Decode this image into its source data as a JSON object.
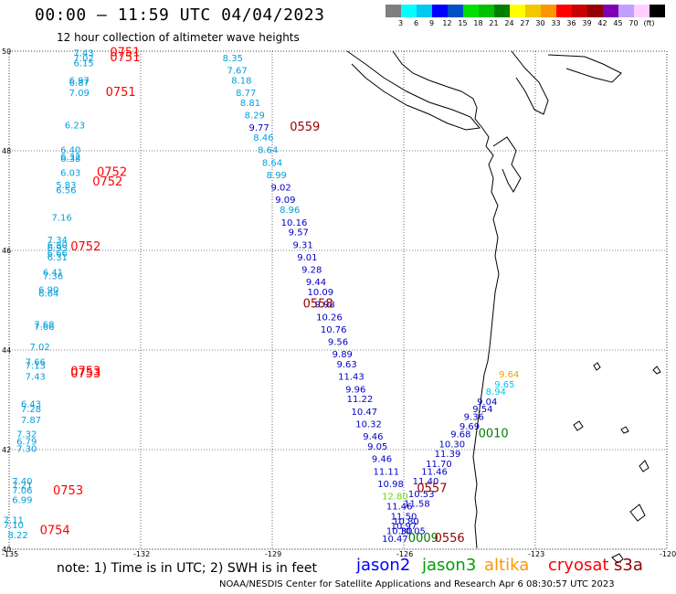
{
  "header": {
    "title": "00:00 – 11:59 UTC 04/04/2023",
    "subtitle": "12 hour collection of altimeter wave heights"
  },
  "colorbar": {
    "swatches": [
      "#7f7f7f",
      "#00ffff",
      "#00c8f0",
      "#0000ff",
      "#0050c8",
      "#00e000",
      "#00c000",
      "#008000",
      "#ffff00",
      "#f0c800",
      "#ff9600",
      "#ff0000",
      "#c80000",
      "#960000",
      "#7f00b4",
      "#c0a0ff",
      "#ffd0ff",
      "#000000"
    ],
    "labels": [
      "3",
      "6",
      "9",
      "12",
      "15",
      "18",
      "21",
      "24",
      "27",
      "30",
      "33",
      "36",
      "39",
      "42",
      "45",
      "70",
      "(ft)"
    ]
  },
  "axes": {
    "lon_ticks": [
      "-135",
      "-132",
      "-129",
      "-126",
      "-123",
      "-120"
    ],
    "lat_ticks": [
      "50",
      "48",
      "46",
      "44",
      "42",
      "40"
    ],
    "lon_range": [
      -135,
      -120
    ],
    "lat_range": [
      40,
      50
    ]
  },
  "footer": {
    "note": "note:  1) Time is in UTC;  2) SWH is in feet",
    "credit": "NOAA/NESDIS Center for Satellite Applications and Research    Apr  6 08:30:57 UTC 2023"
  },
  "legend": [
    {
      "name": "jason2",
      "color": "#0000ff"
    },
    {
      "name": "jason3",
      "color": "#00a000"
    },
    {
      "name": "altika",
      "color": "#ff9600"
    },
    {
      "name": "cryosat",
      "color": "#ff0000"
    },
    {
      "name": "s3a",
      "color": "#960000"
    }
  ],
  "track_labels": [
    {
      "text": "0751",
      "lon": -132.7,
      "lat": 49.9,
      "color": "#ff0000"
    },
    {
      "text": "0751",
      "lon": -132.7,
      "lat": 49.8,
      "color": "#ff0000"
    },
    {
      "text": "0751",
      "lon": -132.8,
      "lat": 49.1,
      "color": "#ff0000"
    },
    {
      "text": "0559",
      "lon": -128.6,
      "lat": 48.4,
      "color": "#960000"
    },
    {
      "text": "0752",
      "lon": -133.0,
      "lat": 47.5,
      "color": "#ff0000"
    },
    {
      "text": "0752",
      "lon": -133.1,
      "lat": 47.3,
      "color": "#ff0000"
    },
    {
      "text": "0752",
      "lon": -133.6,
      "lat": 46.0,
      "color": "#ff0000"
    },
    {
      "text": "0558",
      "lon": -128.3,
      "lat": 44.85,
      "color": "#960000"
    },
    {
      "text": "0753",
      "lon": -133.6,
      "lat": 43.5,
      "color": "#ff0000"
    },
    {
      "text": "0753",
      "lon": -133.6,
      "lat": 43.45,
      "color": "#ff0000"
    },
    {
      "text": "0010",
      "lon": -124.3,
      "lat": 42.25,
      "color": "#008000"
    },
    {
      "text": "0753",
      "lon": -134.0,
      "lat": 41.1,
      "color": "#ff0000"
    },
    {
      "text": "0557",
      "lon": -125.7,
      "lat": 41.15,
      "color": "#960000"
    },
    {
      "text": "0754",
      "lon": -134.3,
      "lat": 40.3,
      "color": "#ff0000"
    },
    {
      "text": "0009",
      "lon": -125.9,
      "lat": 40.15,
      "color": "#008000"
    },
    {
      "text": "0556",
      "lon": -125.3,
      "lat": 40.15,
      "color": "#960000"
    }
  ],
  "observations": [
    {
      "v": "7.43",
      "lon": -133.3,
      "lat": 49.9,
      "c": "#00a0dc"
    },
    {
      "v": "7.02",
      "lon": -133.3,
      "lat": 49.8,
      "c": "#00a0dc"
    },
    {
      "v": "6.15",
      "lon": -133.3,
      "lat": 49.7,
      "c": "#00a0dc"
    },
    {
      "v": "6.97",
      "lon": -133.4,
      "lat": 49.35,
      "c": "#00a0dc"
    },
    {
      "v": "6.87",
      "lon": -133.4,
      "lat": 49.3,
      "c": "#00a0dc"
    },
    {
      "v": "7.09",
      "lon": -133.4,
      "lat": 49.1,
      "c": "#00a0dc"
    },
    {
      "v": "6.23",
      "lon": -133.5,
      "lat": 48.45,
      "c": "#00a0dc"
    },
    {
      "v": "6.40",
      "lon": -133.6,
      "lat": 47.95,
      "c": "#00a0dc"
    },
    {
      "v": "6.32",
      "lon": -133.6,
      "lat": 47.82,
      "c": "#00a0dc"
    },
    {
      "v": "6.38",
      "lon": -133.6,
      "lat": 47.78,
      "c": "#00a0dc"
    },
    {
      "v": "6.03",
      "lon": -133.6,
      "lat": 47.5,
      "c": "#00a0dc"
    },
    {
      "v": "5.83",
      "lon": -133.7,
      "lat": 47.25,
      "c": "#00a0dc"
    },
    {
      "v": "6.56",
      "lon": -133.7,
      "lat": 47.15,
      "c": "#00a0dc"
    },
    {
      "v": "7.16",
      "lon": -133.8,
      "lat": 46.6,
      "c": "#00a0dc"
    },
    {
      "v": "7.34",
      "lon": -133.9,
      "lat": 46.15,
      "c": "#00a0dc"
    },
    {
      "v": "6.80",
      "lon": -133.9,
      "lat": 46.05,
      "c": "#00a0dc"
    },
    {
      "v": "6.95",
      "lon": -133.9,
      "lat": 45.98,
      "c": "#00a0dc"
    },
    {
      "v": "6.66",
      "lon": -133.9,
      "lat": 45.88,
      "c": "#00a0dc"
    },
    {
      "v": "6.31",
      "lon": -133.9,
      "lat": 45.8,
      "c": "#00a0dc"
    },
    {
      "v": "6.41",
      "lon": -134.0,
      "lat": 45.5,
      "c": "#00a0dc"
    },
    {
      "v": "7.36",
      "lon": -134.0,
      "lat": 45.42,
      "c": "#00a0dc"
    },
    {
      "v": "6.90",
      "lon": -134.1,
      "lat": 45.15,
      "c": "#00a0dc"
    },
    {
      "v": "6.64",
      "lon": -134.1,
      "lat": 45.07,
      "c": "#00a0dc"
    },
    {
      "v": "7.68",
      "lon": -134.2,
      "lat": 44.45,
      "c": "#00a0dc"
    },
    {
      "v": "7.66",
      "lon": -134.2,
      "lat": 44.4,
      "c": "#00a0dc"
    },
    {
      "v": "7.02",
      "lon": -134.3,
      "lat": 44.0,
      "c": "#00a0dc"
    },
    {
      "v": "7.66",
      "lon": -134.4,
      "lat": 43.7,
      "c": "#00a0dc"
    },
    {
      "v": "7.13",
      "lon": -134.4,
      "lat": 43.62,
      "c": "#00a0dc"
    },
    {
      "v": "7.43",
      "lon": -134.4,
      "lat": 43.4,
      "c": "#00a0dc"
    },
    {
      "v": "6.43",
      "lon": -134.5,
      "lat": 42.85,
      "c": "#00a0dc"
    },
    {
      "v": "7.28",
      "lon": -134.5,
      "lat": 42.75,
      "c": "#00a0dc"
    },
    {
      "v": "7.87",
      "lon": -134.5,
      "lat": 42.53,
      "c": "#00a0dc"
    },
    {
      "v": "7.32",
      "lon": -134.6,
      "lat": 42.25,
      "c": "#00a0dc"
    },
    {
      "v": "6.79",
      "lon": -134.6,
      "lat": 42.1,
      "c": "#00a0dc"
    },
    {
      "v": "7.30",
      "lon": -134.6,
      "lat": 41.95,
      "c": "#00a0dc"
    },
    {
      "v": "7.40",
      "lon": -134.7,
      "lat": 41.3,
      "c": "#00a0dc"
    },
    {
      "v": "7.21",
      "lon": -134.7,
      "lat": 41.22,
      "c": "#00a0dc"
    },
    {
      "v": "7.06",
      "lon": -134.7,
      "lat": 41.12,
      "c": "#00a0dc"
    },
    {
      "v": "6.99",
      "lon": -134.7,
      "lat": 40.93,
      "c": "#00a0dc"
    },
    {
      "v": "7.11",
      "lon": -134.9,
      "lat": 40.52,
      "c": "#00a0dc"
    },
    {
      "v": "7.10",
      "lon": -134.9,
      "lat": 40.42,
      "c": "#00a0dc"
    },
    {
      "v": "8.22",
      "lon": -134.8,
      "lat": 40.22,
      "c": "#00a0dc"
    },
    {
      "v": "8.35",
      "lon": -129.9,
      "lat": 49.8,
      "c": "#00a0dc"
    },
    {
      "v": "7.67",
      "lon": -129.8,
      "lat": 49.55,
      "c": "#00a0dc"
    },
    {
      "v": "8.18",
      "lon": -129.7,
      "lat": 49.35,
      "c": "#00a0dc"
    },
    {
      "v": "8.77",
      "lon": -129.6,
      "lat": 49.1,
      "c": "#00a0dc"
    },
    {
      "v": "8.81",
      "lon": -129.5,
      "lat": 48.9,
      "c": "#00a0dc"
    },
    {
      "v": "8.29",
      "lon": -129.4,
      "lat": 48.65,
      "c": "#00a0dc"
    },
    {
      "v": "9.77",
      "lon": -129.3,
      "lat": 48.4,
      "c": "#0000c8"
    },
    {
      "v": "8.46",
      "lon": -129.2,
      "lat": 48.2,
      "c": "#00a0dc"
    },
    {
      "v": "8.64",
      "lon": -129.1,
      "lat": 47.95,
      "c": "#00a0dc"
    },
    {
      "v": "8.64",
      "lon": -129.0,
      "lat": 47.7,
      "c": "#00a0dc"
    },
    {
      "v": "8.99",
      "lon": -128.9,
      "lat": 47.45,
      "c": "#00a0dc"
    },
    {
      "v": "9.02",
      "lon": -128.8,
      "lat": 47.2,
      "c": "#0000c8"
    },
    {
      "v": "9.09",
      "lon": -128.7,
      "lat": 46.95,
      "c": "#0000c8"
    },
    {
      "v": "8.96",
      "lon": -128.6,
      "lat": 46.75,
      "c": "#00a0dc"
    },
    {
      "v": "10.16",
      "lon": -128.5,
      "lat": 46.5,
      "c": "#0000c8"
    },
    {
      "v": "9.57",
      "lon": -128.4,
      "lat": 46.3,
      "c": "#0000c8"
    },
    {
      "v": "9.31",
      "lon": -128.3,
      "lat": 46.05,
      "c": "#0000c8"
    },
    {
      "v": "9.01",
      "lon": -128.2,
      "lat": 45.8,
      "c": "#0000c8"
    },
    {
      "v": "9.28",
      "lon": -128.1,
      "lat": 45.55,
      "c": "#0000c8"
    },
    {
      "v": "9.44",
      "lon": -128.0,
      "lat": 45.3,
      "c": "#0000c8"
    },
    {
      "v": "10.09",
      "lon": -127.9,
      "lat": 45.1,
      "c": "#0000c8"
    },
    {
      "v": "9.98",
      "lon": -127.8,
      "lat": 44.85,
      "c": "#0000c8"
    },
    {
      "v": "10.26",
      "lon": -127.7,
      "lat": 44.6,
      "c": "#0000c8"
    },
    {
      "v": "10.76",
      "lon": -127.6,
      "lat": 44.35,
      "c": "#0000c8"
    },
    {
      "v": "9.56",
      "lon": -127.5,
      "lat": 44.1,
      "c": "#0000c8"
    },
    {
      "v": "9.89",
      "lon": -127.4,
      "lat": 43.85,
      "c": "#0000c8"
    },
    {
      "v": "9.63",
      "lon": -127.3,
      "lat": 43.65,
      "c": "#0000c8"
    },
    {
      "v": "11.43",
      "lon": -127.2,
      "lat": 43.4,
      "c": "#0000c8"
    },
    {
      "v": "9.96",
      "lon": -127.1,
      "lat": 43.15,
      "c": "#0000c8"
    },
    {
      "v": "11.22",
      "lon": -127.0,
      "lat": 42.95,
      "c": "#0000c8"
    },
    {
      "v": "10.47",
      "lon": -126.9,
      "lat": 42.7,
      "c": "#0000c8"
    },
    {
      "v": "10.32",
      "lon": -126.8,
      "lat": 42.45,
      "c": "#0000c8"
    },
    {
      "v": "9.46",
      "lon": -126.7,
      "lat": 42.2,
      "c": "#0000c8"
    },
    {
      "v": "9.05",
      "lon": -126.6,
      "lat": 42.0,
      "c": "#0000c8"
    },
    {
      "v": "9.46",
      "lon": -126.5,
      "lat": 41.75,
      "c": "#0000c8"
    },
    {
      "v": "11.11",
      "lon": -126.4,
      "lat": 41.5,
      "c": "#0000c8"
    },
    {
      "v": "10.98",
      "lon": -126.3,
      "lat": 41.25,
      "c": "#0000c8"
    },
    {
      "v": "12.80",
      "lon": -126.2,
      "lat": 41.0,
      "c": "#60dc00"
    },
    {
      "v": "11.46",
      "lon": -126.1,
      "lat": 40.8,
      "c": "#0000c8"
    },
    {
      "v": "11.50",
      "lon": -126.0,
      "lat": 40.6,
      "c": "#0000c8"
    },
    {
      "v": "10.80",
      "lon": -125.95,
      "lat": 40.5,
      "c": "#0000c8"
    },
    {
      "v": "10.97",
      "lon": -126.0,
      "lat": 40.4,
      "c": "#0000c8"
    },
    {
      "v": "10.05",
      "lon": -125.8,
      "lat": 40.3,
      "c": "#0000c8"
    },
    {
      "v": "10.30",
      "lon": -126.1,
      "lat": 40.3,
      "c": "#0000c8"
    },
    {
      "v": "10.47",
      "lon": -126.2,
      "lat": 40.15,
      "c": "#0000c8"
    },
    {
      "v": "9.64",
      "lon": -123.6,
      "lat": 43.45,
      "c": "#f0a000"
    },
    {
      "v": "9.65",
      "lon": -123.7,
      "lat": 43.25,
      "c": "#00c8f0"
    },
    {
      "v": "8.94",
      "lon": -123.9,
      "lat": 43.1,
      "c": "#00c8f0"
    },
    {
      "v": "9.04",
      "lon": -124.1,
      "lat": 42.9,
      "c": "#0000c8"
    },
    {
      "v": "9.54",
      "lon": -124.2,
      "lat": 42.75,
      "c": "#0000c8"
    },
    {
      "v": "9.36",
      "lon": -124.4,
      "lat": 42.6,
      "c": "#0000c8"
    },
    {
      "v": "9.69",
      "lon": -124.5,
      "lat": 42.4,
      "c": "#0000c8"
    },
    {
      "v": "9.68",
      "lon": -124.7,
      "lat": 42.25,
      "c": "#0000c8"
    },
    {
      "v": "10.30",
      "lon": -124.9,
      "lat": 42.05,
      "c": "#0000c8"
    },
    {
      "v": "11.39",
      "lon": -125.0,
      "lat": 41.85,
      "c": "#0000c8"
    },
    {
      "v": "11.70",
      "lon": -125.2,
      "lat": 41.65,
      "c": "#0000c8"
    },
    {
      "v": "11.46",
      "lon": -125.3,
      "lat": 41.5,
      "c": "#0000c8"
    },
    {
      "v": "11.40",
      "lon": -125.5,
      "lat": 41.3,
      "c": "#0000c8"
    },
    {
      "v": "10.53",
      "lon": -125.6,
      "lat": 41.05,
      "c": "#0000c8"
    },
    {
      "v": "11.58",
      "lon": -125.7,
      "lat": 40.85,
      "c": "#0000c8"
    }
  ]
}
